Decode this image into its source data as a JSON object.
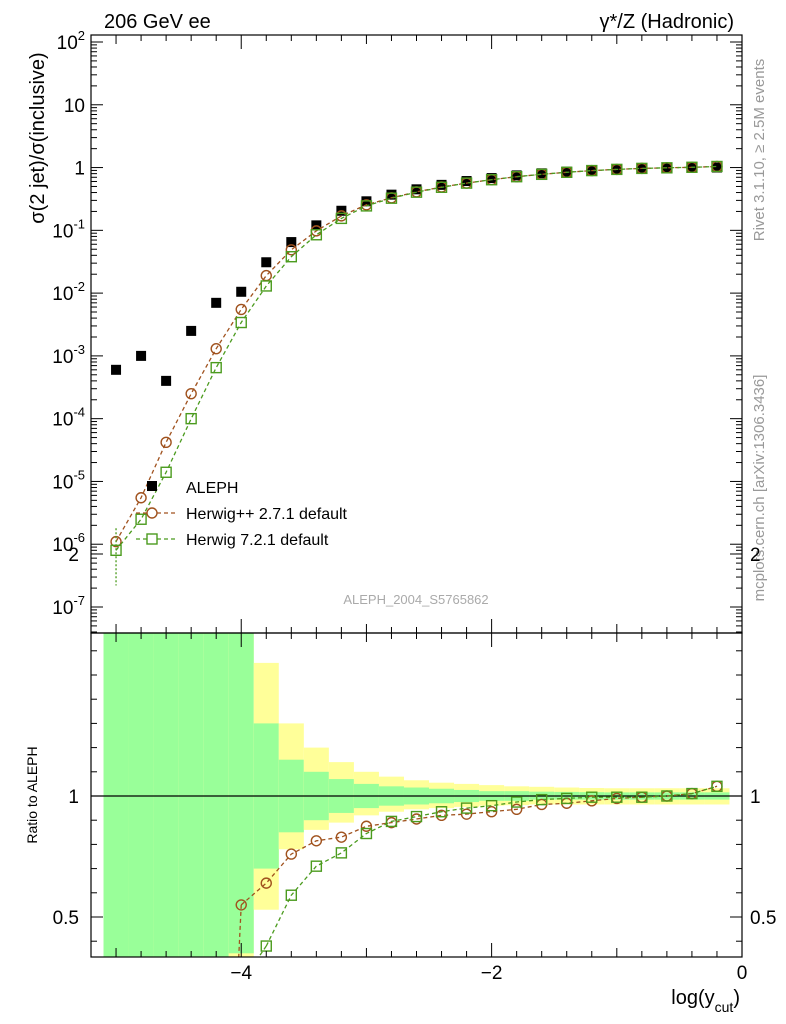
{
  "header": {
    "left": "206 GeV ee",
    "right": "γ*/Z (Hadronic)"
  },
  "side_labels": {
    "rivet": "Rivet 3.1.10, ≥ 2.5M events",
    "mcplots": "mcplots.cern.ch [arXiv:1306.3436]"
  },
  "watermark": "ALEPH_2004_S5765862",
  "colors": {
    "data": "#000000",
    "herwigpp": "#a0521e",
    "herwig7": "#4b9b1e",
    "band_inner": "#99ff99",
    "band_outer": "#ffff99"
  },
  "chart_data": [
    {
      "type": "scatter",
      "ylabel": "σ(2 jet)/σ(inclusive)",
      "y_scale": "log",
      "ylim": [
        4e-08,
        150
      ],
      "xlim": [
        -5.2,
        0
      ],
      "legend": "bottom-left",
      "y_ticks": [
        "10^-7",
        "10^-6",
        "10^-5",
        "10^-4",
        "10^-3",
        "10^-2",
        "10^-1",
        "1",
        "10",
        "10^2"
      ],
      "series": [
        {
          "name": "ALEPH",
          "x": [
            -5.0,
            -4.8,
            -4.6,
            -4.4,
            -4.2,
            -4.0,
            -3.8,
            -3.6,
            -3.4,
            -3.2,
            -3.0,
            -2.8,
            -2.6,
            -2.4,
            -2.2,
            -2.0,
            -1.8,
            -1.6,
            -1.4,
            -1.2,
            -1.0,
            -0.8,
            -0.6,
            -0.4,
            -0.2
          ],
          "y": [
            0.0006,
            0.001,
            0.0004,
            0.0025,
            0.007,
            0.0105,
            0.031,
            0.065,
            0.12,
            0.205,
            0.29,
            0.37,
            0.45,
            0.53,
            0.61,
            0.68,
            0.75,
            0.81,
            0.86,
            0.91,
            0.945,
            0.97,
            0.99,
            1.0,
            1.0
          ]
        },
        {
          "name": "Herwig++ 2.7.1 default",
          "x": [
            -5.0,
            -4.8,
            -4.6,
            -4.4,
            -4.2,
            -4.0,
            -3.8,
            -3.6,
            -3.4,
            -3.2,
            -3.0,
            -2.8,
            -2.6,
            -2.4,
            -2.2,
            -2.0,
            -1.8,
            -1.6,
            -1.4,
            -1.2,
            -1.0,
            -0.8,
            -0.6,
            -0.4,
            -0.2
          ],
          "y": [
            1.1e-06,
            5.5e-06,
            4.2e-05,
            0.00025,
            0.0013,
            0.0055,
            0.019,
            0.049,
            0.098,
            0.17,
            0.255,
            0.33,
            0.41,
            0.49,
            0.565,
            0.64,
            0.715,
            0.78,
            0.84,
            0.895,
            0.935,
            0.97,
            0.99,
            1.01,
            1.04
          ]
        },
        {
          "name": "Herwig 7.2.1 default",
          "x": [
            -5.0,
            -4.8,
            -4.6,
            -4.4,
            -4.2,
            -4.0,
            -3.8,
            -3.6,
            -3.4,
            -3.2,
            -3.0,
            -2.8,
            -2.6,
            -2.4,
            -2.2,
            -2.0,
            -1.8,
            -1.6,
            -1.4,
            -1.2,
            -1.0,
            -0.8,
            -0.6,
            -0.4,
            -0.2
          ],
          "y": [
            8e-07,
            2.5e-06,
            1.4e-05,
            0.0001,
            0.00065,
            0.0034,
            0.013,
            0.038,
            0.085,
            0.155,
            0.245,
            0.325,
            0.405,
            0.485,
            0.565,
            0.64,
            0.715,
            0.78,
            0.84,
            0.895,
            0.935,
            0.97,
            0.99,
            1.01,
            1.04
          ]
        }
      ]
    },
    {
      "type": "line",
      "ylabel": "Ratio to ALEPH",
      "xlabel": "log(y_cut)",
      "xlim": [
        -5.2,
        0
      ],
      "ylim": [
        0.34,
        2.33
      ],
      "x_ticks": [
        -4,
        -2,
        0
      ],
      "y_ticks": [
        0.5,
        1,
        2
      ],
      "bands": {
        "x_edges": [
          -5.1,
          -4.9,
          -4.7,
          -4.5,
          -4.3,
          -4.1,
          -3.9,
          -3.7,
          -3.5,
          -3.3,
          -3.1,
          -2.9,
          -2.7,
          -2.5,
          -2.3,
          -2.1,
          -1.9,
          -1.7,
          -1.5,
          -1.3,
          -1.1,
          -0.9,
          -0.7,
          -0.5,
          -0.3,
          -0.1
        ],
        "inner_low": [
          0.3,
          0.3,
          0.3,
          0.3,
          0.3,
          0.35,
          0.7,
          0.85,
          0.9,
          0.93,
          0.95,
          0.96,
          0.965,
          0.97,
          0.975,
          0.98,
          0.98,
          0.985,
          0.985,
          0.985,
          0.985,
          0.985,
          0.985,
          0.985,
          0.985
        ],
        "inner_high": [
          1.87,
          1.92,
          2.5,
          2.5,
          2.3,
          1.8,
          1.3,
          1.15,
          1.1,
          1.07,
          1.05,
          1.04,
          1.035,
          1.03,
          1.025,
          1.02,
          1.02,
          1.018,
          1.017,
          1.016,
          1.015,
          1.015,
          1.015,
          1.015,
          1.015
        ],
        "outer_low": [
          0.3,
          0.3,
          0.3,
          0.3,
          0.3,
          0.3,
          0.53,
          0.78,
          0.86,
          0.89,
          0.92,
          0.935,
          0.945,
          0.95,
          0.955,
          0.96,
          0.962,
          0.965,
          0.965,
          0.965,
          0.965,
          0.965,
          0.965,
          0.965,
          0.965
        ],
        "outer_high": [
          2.5,
          2.5,
          2.5,
          2.5,
          2.5,
          2.5,
          1.55,
          1.3,
          1.2,
          1.14,
          1.1,
          1.08,
          1.065,
          1.055,
          1.05,
          1.045,
          1.04,
          1.038,
          1.035,
          1.033,
          1.032,
          1.032,
          1.032,
          1.032,
          1.032
        ]
      },
      "series": [
        {
          "name": "Herwig++ 2.7.1 default",
          "x": [
            -4.0,
            -3.8,
            -3.6,
            -3.4,
            -3.2,
            -3.0,
            -2.8,
            -2.6,
            -2.4,
            -2.2,
            -2.0,
            -1.8,
            -1.6,
            -1.4,
            -1.2,
            -1.0,
            -0.8,
            -0.6,
            -0.4,
            -0.2
          ],
          "y": [
            0.55,
            0.64,
            0.76,
            0.815,
            0.83,
            0.875,
            0.89,
            0.905,
            0.92,
            0.925,
            0.935,
            0.945,
            0.965,
            0.97,
            0.98,
            0.99,
            0.995,
            1.0,
            1.01,
            1.04
          ]
        },
        {
          "name": "Herwig 7.2.1 default",
          "x": [
            -3.8,
            -3.6,
            -3.4,
            -3.2,
            -3.0,
            -2.8,
            -2.6,
            -2.4,
            -2.2,
            -2.0,
            -1.8,
            -1.6,
            -1.4,
            -1.2,
            -1.0,
            -0.8,
            -0.6,
            -0.4,
            -0.2
          ],
          "y": [
            0.38,
            0.59,
            0.71,
            0.765,
            0.845,
            0.895,
            0.915,
            0.935,
            0.95,
            0.96,
            0.975,
            0.985,
            0.99,
            0.995,
            0.995,
            0.995,
            1.0,
            1.01,
            1.04
          ]
        }
      ]
    }
  ]
}
